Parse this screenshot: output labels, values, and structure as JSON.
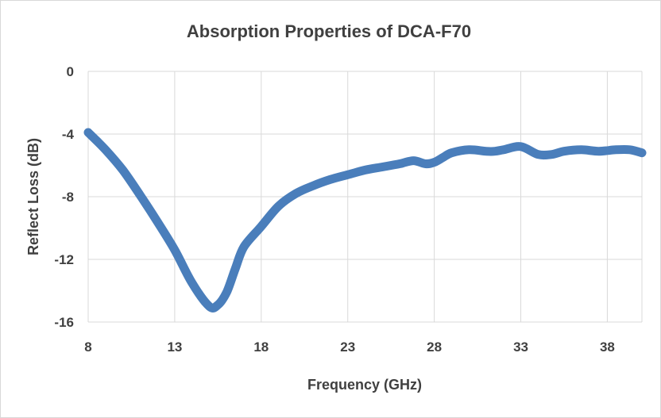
{
  "chart_data": {
    "type": "line",
    "title": "Absorption Properties of DCA-F70",
    "xlabel": "Frequency (GHz)",
    "ylabel": "Reflect Loss (dB)",
    "xlim": [
      8,
      40
    ],
    "ylim": [
      -16,
      0
    ],
    "xticks": [
      8,
      13,
      18,
      23,
      28,
      33,
      38
    ],
    "yticks": [
      0,
      -4,
      -8,
      -12,
      -16
    ],
    "grid": "vertical-and-horizontal",
    "series": [
      {
        "name": "DCA-F70",
        "color": "#4a7ebb",
        "x": [
          8,
          9,
          10,
          11,
          12,
          13,
          14,
          15,
          15.5,
          16,
          16.5,
          17,
          18,
          19,
          20,
          21,
          22,
          23,
          24,
          25,
          26,
          26.8,
          27.5,
          28,
          28.5,
          29,
          30,
          31,
          31.5,
          32,
          33,
          34,
          34.8,
          35.5,
          36.5,
          37.5,
          38.5,
          39.3,
          40
        ],
        "y": [
          -3.9,
          -5.0,
          -6.3,
          -7.9,
          -9.6,
          -11.4,
          -13.5,
          -15.0,
          -14.9,
          -14.1,
          -12.6,
          -11.2,
          -9.9,
          -8.6,
          -7.8,
          -7.3,
          -6.9,
          -6.6,
          -6.3,
          -6.1,
          -5.9,
          -5.7,
          -5.9,
          -5.8,
          -5.5,
          -5.2,
          -5.0,
          -5.1,
          -5.1,
          -5.0,
          -4.8,
          -5.3,
          -5.3,
          -5.1,
          -5.0,
          -5.1,
          -5.0,
          -5.0,
          -5.2
        ]
      }
    ]
  }
}
